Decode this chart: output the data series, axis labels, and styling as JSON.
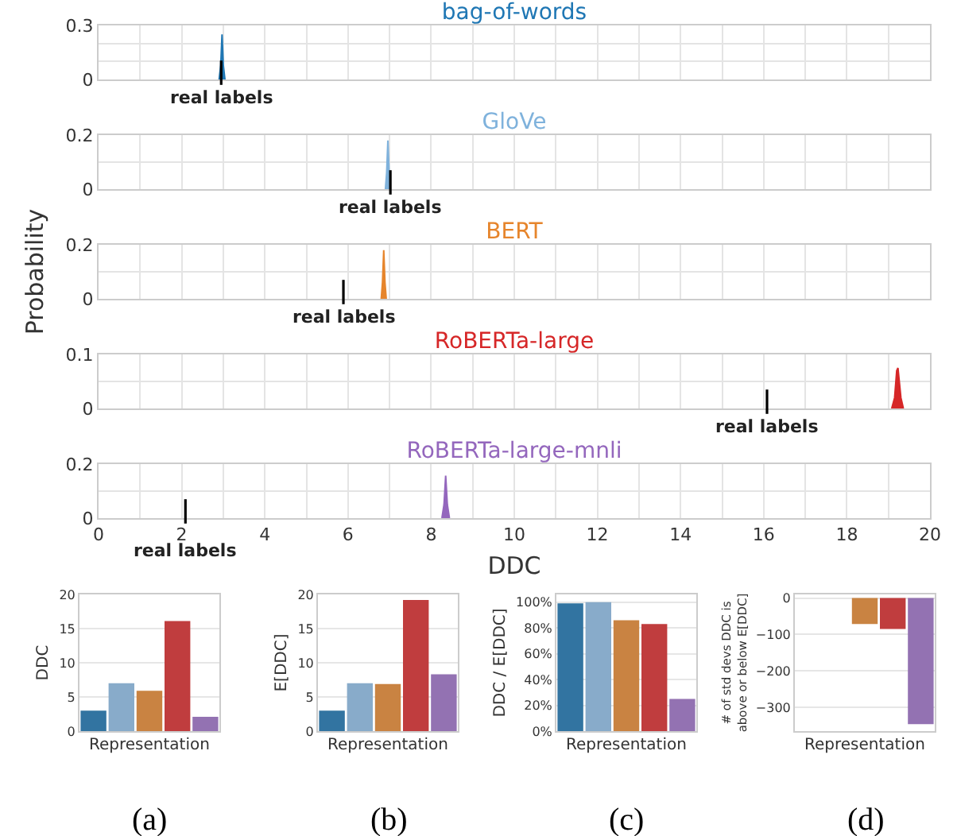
{
  "chart_data": [
    {
      "type": "area",
      "title": "bag-of-words",
      "xlim": [
        0,
        20
      ],
      "xticks": [
        0,
        {
          "value": 1,
          "label": null
        },
        2,
        {
          "value": 3,
          "label": null
        },
        4,
        {
          "value": 5,
          "label": null
        },
        6,
        {
          "value": 7,
          "label": null
        },
        8,
        {
          "value": 9,
          "label": null
        },
        10,
        {
          "value": 11,
          "label": null
        },
        12,
        {
          "value": 13,
          "label": null
        },
        14,
        {
          "value": 15,
          "label": null
        },
        16,
        {
          "value": 17,
          "label": null
        },
        18,
        {
          "value": 19,
          "label": null
        },
        20
      ],
      "ylim": [
        0,
        0.3
      ],
      "yticks": [
        0,
        {
          "value": 0.1,
          "label": null
        },
        {
          "value": 0.2,
          "label": null
        },
        0.3
      ],
      "grid": true,
      "tick_labels": "y",
      "series": [
        {
          "color": "#1f77b4",
          "x": [
            2.9,
            2.94,
            2.97,
            3.0,
            3.04
          ],
          "values": [
            0,
            0.08,
            0.25,
            0.08,
            0
          ]
        }
      ],
      "ref_lines": [
        {
          "axis": "x",
          "value": 2.95,
          "label": "real labels",
          "color": "#000000"
        }
      ]
    },
    {
      "type": "area",
      "title": "GloVe",
      "xlim": [
        0,
        20
      ],
      "xticks": [
        0,
        {
          "value": 1,
          "label": null
        },
        2,
        {
          "value": 3,
          "label": null
        },
        4,
        {
          "value": 5,
          "label": null
        },
        6,
        {
          "value": 7,
          "label": null
        },
        8,
        {
          "value": 9,
          "label": null
        },
        10,
        {
          "value": 11,
          "label": null
        },
        12,
        {
          "value": 13,
          "label": null
        },
        14,
        {
          "value": 15,
          "label": null
        },
        16,
        {
          "value": 17,
          "label": null
        },
        18,
        {
          "value": 19,
          "label": null
        },
        20
      ],
      "ylim": [
        0,
        0.2
      ],
      "yticks": [
        0,
        {
          "value": 0.1,
          "label": null
        },
        0.2
      ],
      "grid": true,
      "tick_labels": "y",
      "series": [
        {
          "color": "#7fb2dc",
          "x": [
            6.9,
            6.93,
            6.96,
            6.99,
            7.02
          ],
          "values": [
            0,
            0.06,
            0.18,
            0.06,
            0
          ]
        }
      ],
      "ref_lines": [
        {
          "axis": "x",
          "value": 7.02,
          "label": "real labels",
          "color": "#000000"
        }
      ]
    },
    {
      "type": "area",
      "title": "BERT",
      "ylabel": "Probability",
      "xlim": [
        0,
        20
      ],
      "xticks": [
        0,
        {
          "value": 1,
          "label": null
        },
        2,
        {
          "value": 3,
          "label": null
        },
        4,
        {
          "value": 5,
          "label": null
        },
        6,
        {
          "value": 7,
          "label": null
        },
        8,
        {
          "value": 9,
          "label": null
        },
        10,
        {
          "value": 11,
          "label": null
        },
        12,
        {
          "value": 13,
          "label": null
        },
        14,
        {
          "value": 15,
          "label": null
        },
        16,
        {
          "value": 17,
          "label": null
        },
        18,
        {
          "value": 19,
          "label": null
        },
        20
      ],
      "ylim": [
        0,
        0.2
      ],
      "yticks": [
        0,
        {
          "value": 0.1,
          "label": null
        },
        0.2
      ],
      "grid": true,
      "tick_labels": "y",
      "series": [
        {
          "color": "#e6852c",
          "x": [
            6.8,
            6.83,
            6.86,
            6.89,
            6.92
          ],
          "values": [
            0,
            0.06,
            0.18,
            0.06,
            0
          ]
        }
      ],
      "ref_lines": [
        {
          "axis": "x",
          "value": 5.89,
          "label": "real labels",
          "color": "#000000"
        }
      ]
    },
    {
      "type": "area",
      "title": "RoBERTa-large",
      "xlim": [
        0,
        20
      ],
      "xticks": [
        0,
        {
          "value": 1,
          "label": null
        },
        2,
        {
          "value": 3,
          "label": null
        },
        4,
        {
          "value": 5,
          "label": null
        },
        6,
        {
          "value": 7,
          "label": null
        },
        8,
        {
          "value": 9,
          "label": null
        },
        10,
        {
          "value": 11,
          "label": null
        },
        12,
        {
          "value": 13,
          "label": null
        },
        14,
        {
          "value": 15,
          "label": null
        },
        16,
        {
          "value": 17,
          "label": null
        },
        18,
        {
          "value": 19,
          "label": null
        },
        20
      ],
      "ylim": [
        0,
        0.1
      ],
      "yticks": [
        0,
        {
          "value": 0.05,
          "label": null
        },
        0.1
      ],
      "grid": true,
      "tick_labels": "y",
      "series": [
        {
          "color": "#d62728",
          "x": [
            19.08,
            19.15,
            19.2,
            19.23,
            19.3,
            19.36
          ],
          "values": [
            0,
            0.02,
            0.07,
            0.075,
            0.02,
            0
          ]
        }
      ],
      "ref_lines": [
        {
          "axis": "x",
          "value": 16.08,
          "label": "real labels",
          "color": "#000000"
        }
      ]
    },
    {
      "type": "area",
      "title": "RoBERTa-large-mnli",
      "xlabel": "DDC",
      "xlim": [
        0,
        20
      ],
      "xticks": [
        0,
        {
          "value": 1,
          "label": null
        },
        2,
        {
          "value": 3,
          "label": null
        },
        4,
        {
          "value": 5,
          "label": null
        },
        6,
        {
          "value": 7,
          "label": null
        },
        8,
        {
          "value": 9,
          "label": null
        },
        10,
        {
          "value": 11,
          "label": null
        },
        12,
        {
          "value": 13,
          "label": null
        },
        14,
        {
          "value": 15,
          "label": null
        },
        16,
        {
          "value": 17,
          "label": null
        },
        18,
        {
          "value": 19,
          "label": null
        },
        20
      ],
      "ylim": [
        0,
        0.2
      ],
      "yticks": [
        0,
        {
          "value": 0.1,
          "label": null
        },
        0.2
      ],
      "grid": true,
      "series": [
        {
          "color": "#9467bd",
          "x": [
            8.26,
            8.31,
            8.35,
            8.39,
            8.44
          ],
          "values": [
            0,
            0.05,
            0.157,
            0.05,
            0
          ]
        }
      ],
      "ref_lines": [
        {
          "axis": "x",
          "value": 2.09,
          "label": "real labels",
          "color": "#000000"
        }
      ]
    },
    {
      "type": "bar",
      "xlabel": "Representation",
      "ylabel": "DDC",
      "categories": [
        null,
        null,
        null,
        null,
        null
      ],
      "values": [
        3.0,
        7.0,
        5.9,
        16.1,
        2.1
      ],
      "colors": [
        "#3274a1",
        "#88abca",
        "#c98342",
        "#c03d3e",
        "#9372b2"
      ],
      "ylim": [
        0,
        20
      ],
      "yticks": [
        0,
        5,
        10,
        15,
        20
      ],
      "grid": "y",
      "annotations": [
        "(a)"
      ]
    },
    {
      "type": "bar",
      "xlabel": "Representation",
      "ylabel": "E[DDC]",
      "categories": [
        null,
        null,
        null,
        null,
        null
      ],
      "values": [
        3.0,
        7.0,
        6.9,
        19.2,
        8.3
      ],
      "colors": [
        "#3274a1",
        "#88abca",
        "#c98342",
        "#c03d3e",
        "#9372b2"
      ],
      "ylim": [
        0,
        20
      ],
      "yticks": [
        0,
        5,
        10,
        15,
        20
      ],
      "grid": "y",
      "annotations": [
        "(b)"
      ]
    },
    {
      "type": "bar",
      "xlabel": "Representation",
      "ylabel": "DDC / E[DDC]",
      "categories": [
        null,
        null,
        null,
        null,
        null
      ],
      "values": [
        99,
        100,
        86,
        83,
        25
      ],
      "colors": [
        "#3274a1",
        "#88abca",
        "#c98342",
        "#c03d3e",
        "#9372b2"
      ],
      "ylim": [
        0,
        106
      ],
      "yticks": [
        {
          "value": 0,
          "label": "0%"
        },
        {
          "value": 20,
          "label": "20%"
        },
        {
          "value": 40,
          "label": "40%"
        },
        {
          "value": 60,
          "label": "60%"
        },
        {
          "value": 80,
          "label": "80%"
        },
        {
          "value": 100,
          "label": "100%"
        }
      ],
      "grid": "y",
      "annotations": [
        "(c)"
      ]
    },
    {
      "type": "bar",
      "xlabel": "Representation",
      "ylabel": "# of std devs DDC is above or below E[DDC]",
      "categories": [
        null,
        null,
        null,
        null,
        null
      ],
      "values": [
        0,
        0,
        -71,
        -85,
        -346
      ],
      "colors": [
        "#3274a1",
        "#88abca",
        "#c98342",
        "#c03d3e",
        "#9372b2"
      ],
      "ylim": [
        -365,
        10
      ],
      "yticks": [
        {
          "value": -300,
          "label": "−300"
        },
        {
          "value": -200,
          "label": "−200"
        },
        {
          "value": -100,
          "label": "−100"
        },
        0
      ],
      "grid": "y",
      "annotations": [
        "(d)"
      ]
    }
  ]
}
